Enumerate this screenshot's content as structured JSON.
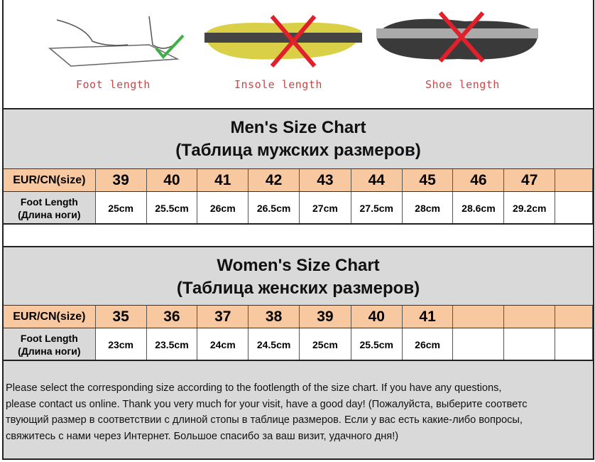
{
  "captions": {
    "foot": "Foot length",
    "insole": "Insole length",
    "shoe": "Shoe length"
  },
  "men": {
    "title": "Men's Size Chart",
    "subtitle": "(Таблица мужских размеров)",
    "size_label": "EUR/CN(size)",
    "foot_label_en": "Foot Length",
    "foot_label_ru": "(Длина ноги)",
    "sizes": [
      "39",
      "40",
      "41",
      "42",
      "43",
      "44",
      "45",
      "46",
      "47",
      ""
    ],
    "lengths": [
      "25cm",
      "25.5cm",
      "26cm",
      "26.5cm",
      "27cm",
      "27.5cm",
      "28cm",
      "28.6cm",
      "29.2cm",
      ""
    ]
  },
  "women": {
    "title": "Women's Size Chart",
    "subtitle": "(Таблица женских размеров)",
    "size_label": "EUR/CN(size)",
    "foot_label_en": "Foot Length",
    "foot_label_ru": "(Длина ноги)",
    "sizes": [
      "35",
      "36",
      "37",
      "38",
      "39",
      "40",
      "41",
      "",
      "",
      ""
    ],
    "lengths": [
      "23cm",
      "23.5cm",
      "24cm",
      "24.5cm",
      "25cm",
      "25.5cm",
      "26cm",
      "",
      "",
      ""
    ]
  },
  "note": {
    "lines": [
      "Please select the corresponding size according to the footlength of the size chart. If you have any questions,",
      "please contact us online. Thank you very much for your visit, have a good day!  (Пожалуйста, выберите соответс",
      "твующий размер в соответствии с длиной стопы в таблице размеров. Если у вас есть какие-либо вопросы,",
      "свяжитесь с нами через Интернет. Большое спасибо за ваш визит, удачного дня!)"
    ]
  },
  "colors": {
    "header_bg": "#d9d9d9",
    "size_row_bg": "#f8c9a0",
    "cross": "#e0202a",
    "check": "#3cb043"
  }
}
